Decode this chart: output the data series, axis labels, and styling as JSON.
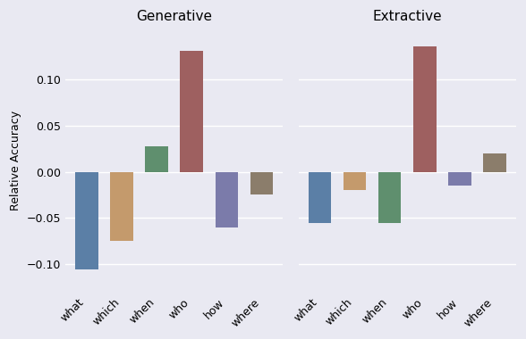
{
  "generative": {
    "what": -0.105,
    "which": -0.075,
    "when": 0.027,
    "who": 0.13,
    "how": -0.06,
    "where": -0.025
  },
  "extractive": {
    "what": -0.055,
    "which": -0.02,
    "when": -0.055,
    "who": 0.135,
    "how": -0.015,
    "where": 0.02
  },
  "categories": [
    "what",
    "which",
    "when",
    "who",
    "how",
    "where"
  ],
  "colors": {
    "what": "#5b7fa6",
    "which": "#c49a6c",
    "when": "#5f8f6e",
    "who": "#9e6060",
    "how": "#7b7baa",
    "where": "#8b7d6b"
  },
  "title_generative": "Generative",
  "title_extractive": "Extractive",
  "ylabel": "Relative Accuracy",
  "ylim": [
    -0.13,
    0.155
  ],
  "yticks": [
    -0.1,
    -0.05,
    0.0,
    0.05,
    0.1
  ],
  "background_color": "#e9e9f2",
  "figure_background": "#e9e9f2"
}
